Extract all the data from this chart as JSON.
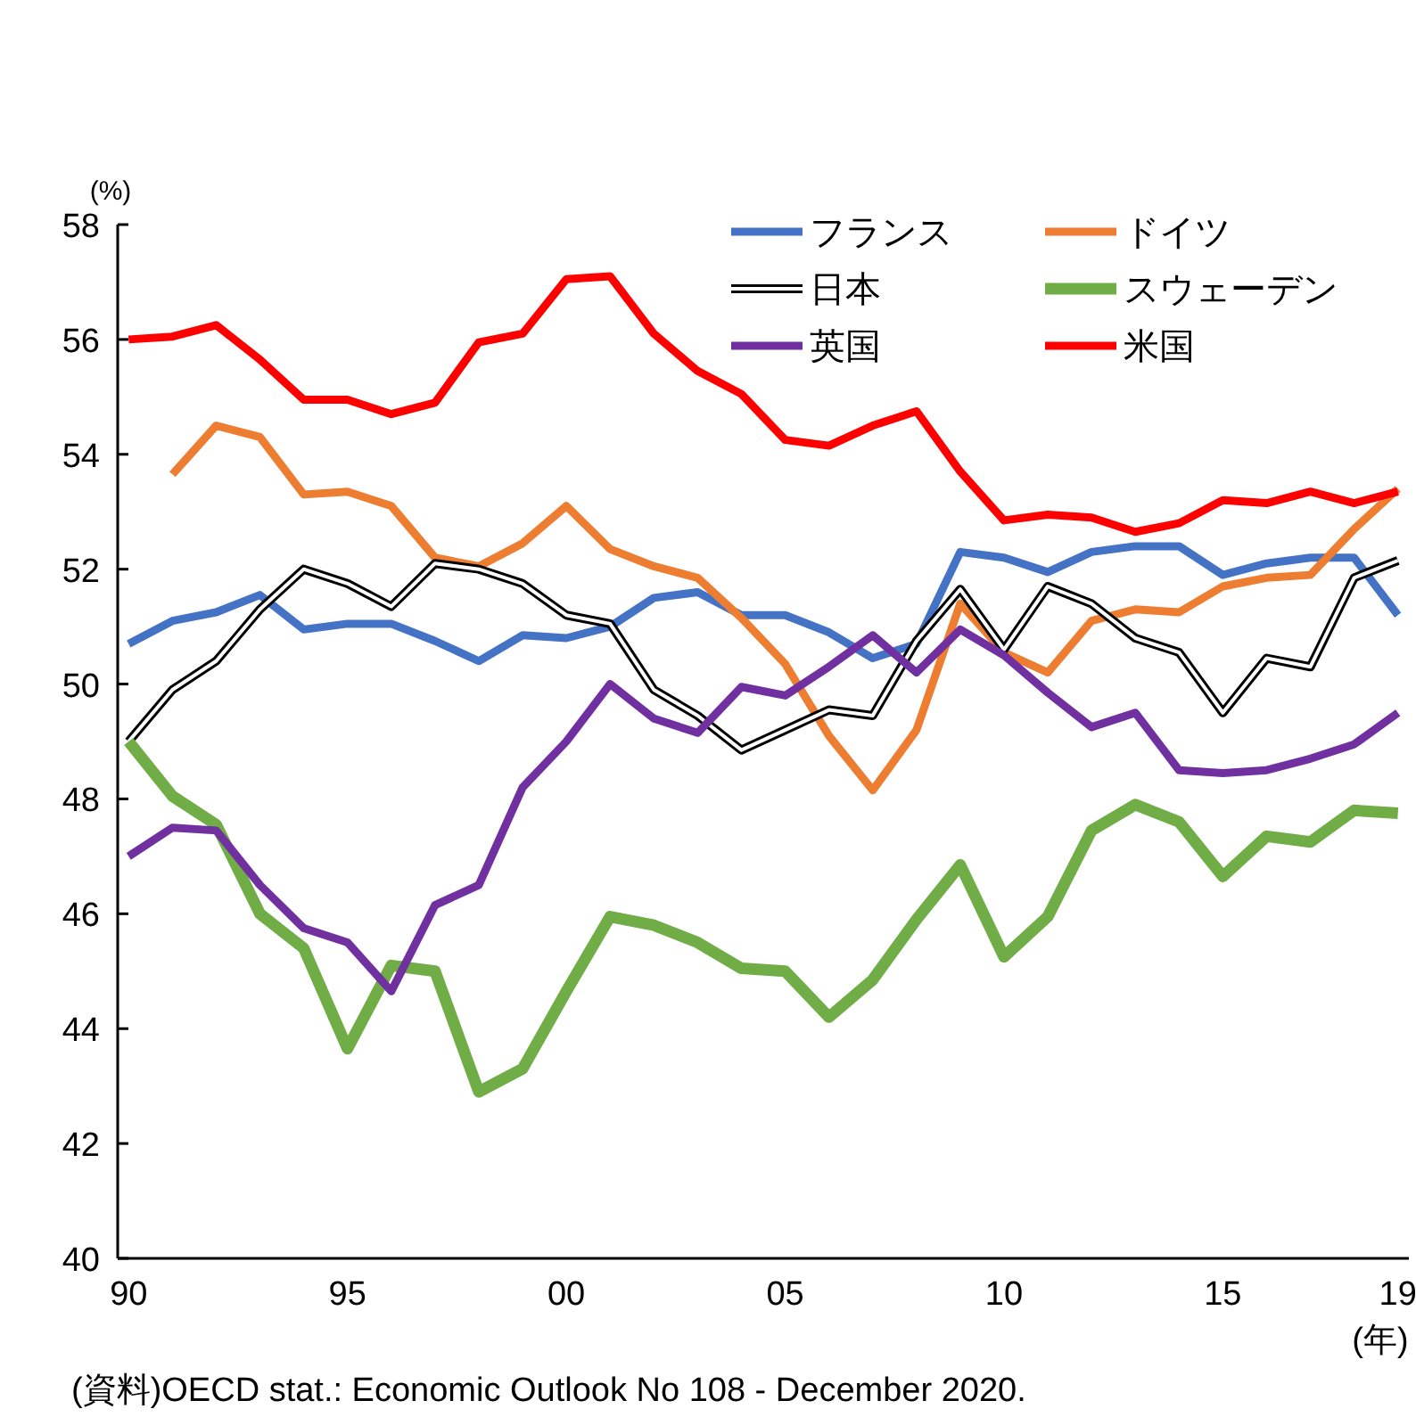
{
  "chart_data": {
    "type": "line",
    "categories": [
      "90",
      null,
      null,
      null,
      null,
      "95",
      null,
      null,
      null,
      null,
      "00",
      null,
      null,
      null,
      null,
      "05",
      null,
      null,
      null,
      null,
      "10",
      null,
      null,
      null,
      null,
      "15",
      null,
      null,
      null,
      "19"
    ],
    "ylabel": "(%)",
    "xlabel": "(年)",
    "ylim": [
      40,
      58
    ],
    "yticks": [
      40,
      42,
      44,
      46,
      48,
      50,
      52,
      54,
      56,
      58
    ],
    "grid": false,
    "legend": "top right",
    "annotations": [
      "(資料)OECD stat.: Economic Outlook No 108 - December 2020."
    ],
    "series": [
      {
        "name": "フランス",
        "color": "#4472c4",
        "values": [
          50.7,
          51.1,
          51.25,
          51.55,
          50.95,
          51.05,
          51.05,
          50.75,
          50.4,
          50.85,
          50.8,
          51.0,
          51.5,
          51.6,
          51.2,
          51.2,
          50.9,
          50.45,
          50.7,
          52.3,
          52.2,
          51.95,
          52.3,
          52.4,
          52.4,
          51.9,
          52.1,
          52.2,
          52.2,
          51.2
        ]
      },
      {
        "name": "ドイツ",
        "color": "#ed7d31",
        "values": [
          null,
          53.65,
          54.5,
          54.3,
          53.3,
          53.35,
          53.1,
          52.2,
          52.05,
          52.45,
          53.1,
          52.35,
          52.05,
          51.85,
          51.15,
          50.35,
          49.1,
          48.15,
          49.2,
          51.4,
          50.55,
          50.2,
          51.1,
          51.3,
          51.25,
          51.7,
          51.85,
          51.9,
          52.7,
          53.4
        ]
      },
      {
        "name": "日本",
        "color": "#000000",
        "values": [
          49.0,
          49.9,
          50.4,
          51.3,
          52.0,
          51.75,
          51.35,
          52.1,
          52.0,
          51.75,
          51.2,
          51.05,
          49.9,
          49.45,
          48.85,
          49.2,
          49.55,
          49.45,
          50.75,
          51.65,
          50.6,
          51.7,
          51.4,
          50.8,
          50.55,
          49.5,
          50.45,
          50.3,
          51.85,
          52.15
        ]
      },
      {
        "name": "スウェーデン",
        "color": "#70ad47",
        "values": [
          49.0,
          48.05,
          47.55,
          46.0,
          45.4,
          43.65,
          45.1,
          45.0,
          42.9,
          43.3,
          44.65,
          45.95,
          45.8,
          45.5,
          45.05,
          45.0,
          44.2,
          44.85,
          45.9,
          46.85,
          45.25,
          45.95,
          47.45,
          47.9,
          47.6,
          46.65,
          47.35,
          47.25,
          47.8,
          47.75
        ]
      },
      {
        "name": "英国",
        "color": "#7030a0",
        "values": [
          47.0,
          47.5,
          47.45,
          46.5,
          45.75,
          45.5,
          44.65,
          46.15,
          46.5,
          48.2,
          49.0,
          50.0,
          49.4,
          49.15,
          49.95,
          49.8,
          50.3,
          50.85,
          50.2,
          50.95,
          50.5,
          49.85,
          49.25,
          49.5,
          48.5,
          48.45,
          48.5,
          48.7,
          48.95,
          49.5
        ]
      },
      {
        "name": "米国",
        "color": "#ff0000",
        "values": [
          56.0,
          56.05,
          56.25,
          55.65,
          54.95,
          54.95,
          54.7,
          54.9,
          55.95,
          56.1,
          57.05,
          57.1,
          56.1,
          55.45,
          55.05,
          54.25,
          54.15,
          54.5,
          54.75,
          53.7,
          52.85,
          52.95,
          52.9,
          52.65,
          52.8,
          53.2,
          53.15,
          53.35,
          53.15,
          53.35
        ]
      }
    ]
  }
}
